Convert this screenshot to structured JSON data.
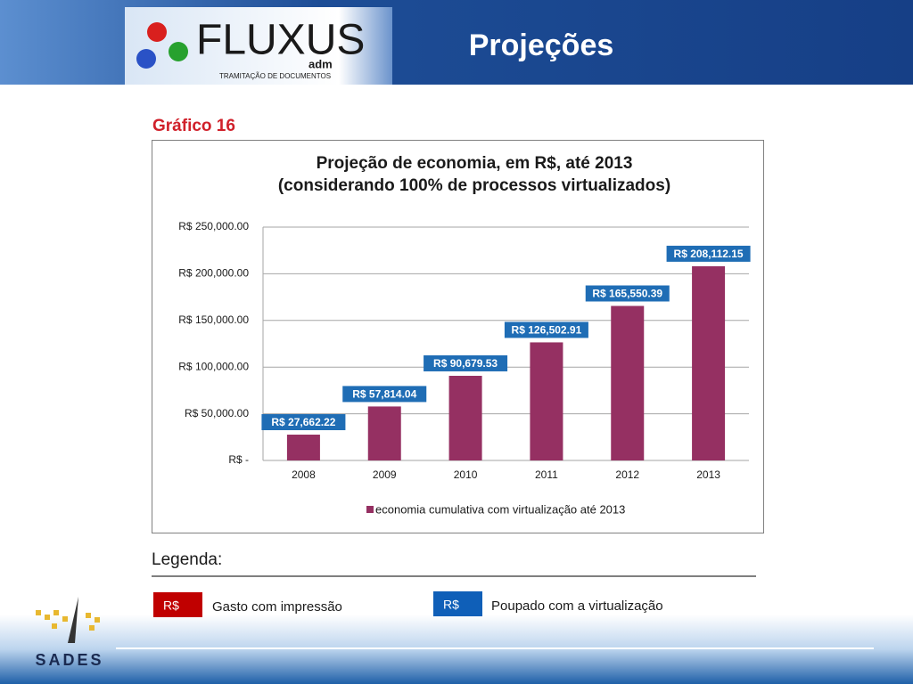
{
  "header": {
    "title": "Projeções",
    "logo_text": "FLUXUS",
    "logo_sub": "adm",
    "logo_tagline": "TRAMITAÇÃO DE DOCUMENTOS"
  },
  "section_title": "Gráfico 16",
  "chart_data": {
    "type": "bar",
    "title": "Projeção de economia, em R$, até 2013",
    "subtitle": "(considerando 100% de processos virtualizados)",
    "categories": [
      "2008",
      "2009",
      "2010",
      "2011",
      "2012",
      "2013"
    ],
    "series": [
      {
        "name": "economia cumulativa com virtualização até 2013",
        "color": "#953062",
        "values": [
          27662.22,
          57814.04,
          90679.53,
          126502.91,
          165550.39,
          208112.15
        ],
        "value_labels": [
          "R$ 27,662.22",
          "R$ 57,814.04",
          "R$ 90,679.53",
          "R$ 126,502.91",
          "R$ 165,550.39",
          "R$ 208,112.15"
        ],
        "label_color": "#1f6db5"
      }
    ],
    "ylim": [
      0,
      250000
    ],
    "yticks": [
      {
        "value": 0,
        "label": "R$ -"
      },
      {
        "value": 50000,
        "label": "R$ 50,000.00"
      },
      {
        "value": 100000,
        "label": "R$ 100,000.00"
      },
      {
        "value": 150000,
        "label": "R$ 150,000.00"
      },
      {
        "value": 200000,
        "label": "R$ 200,000.00"
      },
      {
        "value": 250000,
        "label": "R$ 250,000.00"
      }
    ],
    "grid": true,
    "legend": "bottom"
  },
  "legend_section": {
    "title": "Legenda:",
    "items": [
      {
        "swatch": "R$",
        "color": "#c00000",
        "label": "Gasto com impressão"
      },
      {
        "swatch": "R$",
        "color": "#0f5fb8",
        "label": "Poupado com a virtualização"
      }
    ]
  },
  "footer": {
    "logo_text": "SADES"
  }
}
